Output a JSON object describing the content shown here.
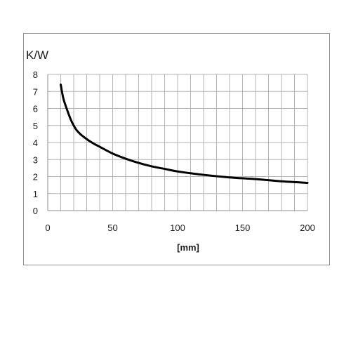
{
  "chart_data": {
    "type": "line",
    "ylabel": "K/W",
    "xlabel": "[mm]",
    "xlim": [
      0,
      200
    ],
    "ylim": [
      0,
      8
    ],
    "xticks": [
      0,
      50,
      100,
      150,
      200
    ],
    "yticks": [
      0,
      1,
      2,
      3,
      4,
      5,
      6,
      7,
      8
    ],
    "x_minor_step": 10,
    "grid": true,
    "series": [
      {
        "x": [
          10,
          12,
          15,
          18,
          20,
          22,
          25,
          30,
          35,
          40,
          50,
          60,
          70,
          80,
          90,
          100,
          120,
          140,
          160,
          180,
          200
        ],
        "y": [
          7.4,
          6.6,
          5.9,
          5.3,
          5.0,
          4.75,
          4.5,
          4.2,
          3.95,
          3.75,
          3.35,
          3.05,
          2.8,
          2.6,
          2.45,
          2.3,
          2.1,
          1.95,
          1.85,
          1.72,
          1.63
        ],
        "color": "#000000"
      }
    ]
  }
}
